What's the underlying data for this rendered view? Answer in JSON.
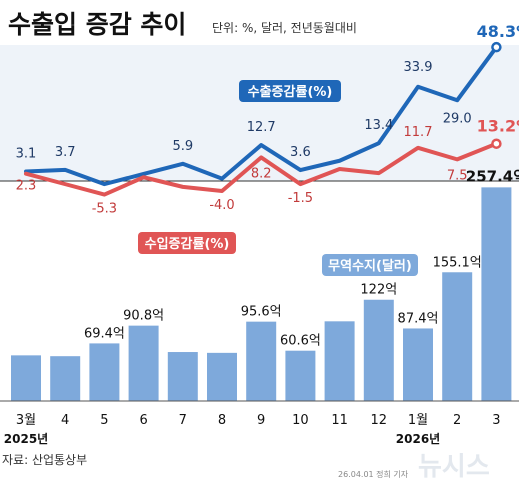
{
  "title": "수출입 증감 추이",
  "unit_note": "단위: %, 달러, 전년동월대비",
  "source": "자료: 산업통상부",
  "footer_credit": "26.04.01 정희 기자",
  "watermark": "뉴시스",
  "colors": {
    "export": "#1f67b8",
    "import": "#e05555",
    "bar": "#7ea9db",
    "zero_line": "#333333",
    "upper_band": "#eef3f9"
  },
  "chart_data": [
    {
      "type": "line",
      "categories": [
        "3월",
        "4",
        "5",
        "6",
        "7",
        "8",
        "9",
        "10",
        "11",
        "12",
        "1월",
        "2",
        "3"
      ],
      "series": [
        {
          "name": "수출증감률(%)",
          "values": [
            3.1,
            3.7,
            -1.5,
            2.2,
            5.9,
            0.5,
            12.7,
            3.6,
            7.0,
            13.4,
            33.9,
            29.0,
            48.3
          ],
          "labels": [
            "3.1",
            "3.7",
            "",
            "",
            "5.9",
            "",
            "12.7",
            "3.6",
            "",
            "13.4",
            "33.9",
            "29.0",
            "48.3%"
          ]
        },
        {
          "name": "수입증감률(%)",
          "values": [
            2.3,
            -1.5,
            -5.3,
            1.0,
            -2.5,
            -4.0,
            8.2,
            -1.5,
            4.0,
            2.5,
            11.7,
            7.5,
            13.2
          ],
          "labels": [
            "2.3",
            "",
            "-5.3",
            "",
            "",
            "-4.0",
            "8.2",
            "-1.5",
            "",
            "",
            "11.7",
            "7.5",
            "13.2%"
          ]
        }
      ],
      "legend": [
        "수출증감률(%)",
        "수입증감률(%)"
      ]
    },
    {
      "type": "bar",
      "categories": [
        "3월",
        "4",
        "5",
        "6",
        "7",
        "8",
        "9",
        "10",
        "11",
        "12",
        "1월",
        "2",
        "3"
      ],
      "year_labels": {
        "first": "2025년",
        "first_index": 0,
        "second": "2026년",
        "second_index": 10
      },
      "series": [
        {
          "name": "무역수지(달러)",
          "values": [
            55,
            54,
            69.4,
            90.8,
            59,
            58,
            95.6,
            60.6,
            96,
            122,
            87.4,
            155.1,
            257.4
          ],
          "labels": [
            "",
            "",
            "69.4억",
            "90.8억",
            "",
            "",
            "95.6억",
            "60.6억",
            "",
            "122억",
            "87.4억",
            "155.1억",
            "257.4억"
          ]
        }
      ],
      "legend": [
        "무역수지(달러)"
      ]
    }
  ]
}
